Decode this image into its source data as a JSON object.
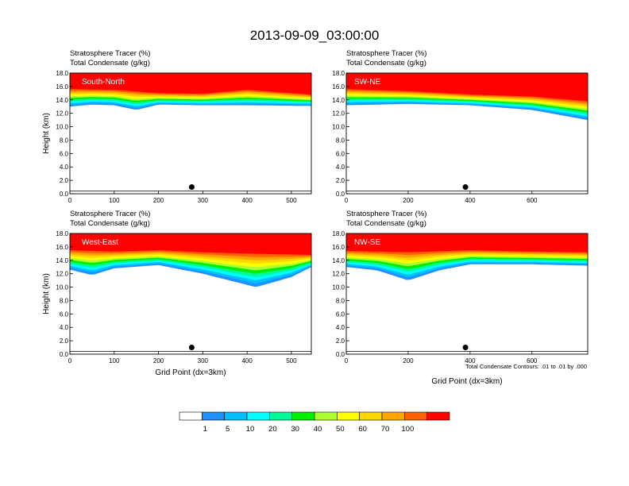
{
  "figure": {
    "title": "2013-09-09_03:00:00",
    "footnote": "Total Condensate Contours: .01 to .01 by .000",
    "marker_height_km": 1.0
  },
  "colorbar": {
    "labels": [
      "1",
      "5",
      "10",
      "20",
      "30",
      "40",
      "50",
      "60",
      "70",
      "100"
    ],
    "colors": [
      "#ffffff",
      "#1e90ff",
      "#00bfff",
      "#00ffff",
      "#00fa9a",
      "#00ee00",
      "#adff2f",
      "#ffff00",
      "#ffd700",
      "#ffa500",
      "#ff6103",
      "#ff0000"
    ]
  },
  "chart_data": [
    {
      "type": "heatmap",
      "panel_label": "South-North",
      "subtitle_1": "Stratosphere Tracer   (%)",
      "subtitle_2": "Total Condensate   (g/kg)",
      "ylabel": "Height (km)",
      "xlabel": "",
      "xlim": [
        0,
        545
      ],
      "ylim": [
        0,
        18
      ],
      "xticks": [
        0,
        100,
        200,
        300,
        400,
        500
      ],
      "yticks": [
        "0.0",
        "2.0",
        "4.0",
        "6.0",
        "8.0",
        "10.0",
        "12.0",
        "14.0",
        "16.0",
        "18.0"
      ],
      "marker_x": 275,
      "tracer_100_base_km": [
        [
          0,
          15.6
        ],
        [
          100,
          15.5
        ],
        [
          200,
          15.0
        ],
        [
          300,
          14.9
        ],
        [
          400,
          15.5
        ],
        [
          500,
          15.0
        ],
        [
          545,
          14.8
        ]
      ],
      "tracer_1_base_km": [
        [
          0,
          13.0
        ],
        [
          50,
          13.3
        ],
        [
          100,
          13.2
        ],
        [
          150,
          12.5
        ],
        [
          200,
          13.3
        ],
        [
          300,
          13.2
        ],
        [
          400,
          13.2
        ],
        [
          545,
          13.1
        ]
      ]
    },
    {
      "type": "heatmap",
      "panel_label": "SW-NE",
      "subtitle_1": "Stratosphere Tracer   (%)",
      "subtitle_2": "Total Condensate   (g/kg)",
      "ylabel": "",
      "xlabel": "",
      "xlim": [
        0,
        780
      ],
      "ylim": [
        0,
        18
      ],
      "xticks": [
        0,
        200,
        400,
        600
      ],
      "yticks": [
        "0.0",
        "2.0",
        "4.0",
        "6.0",
        "8.0",
        "10.0",
        "12.0",
        "14.0",
        "16.0",
        "18.0"
      ],
      "marker_x": 385,
      "tracer_100_base_km": [
        [
          0,
          15.6
        ],
        [
          200,
          15.3
        ],
        [
          400,
          14.8
        ],
        [
          600,
          14.5
        ],
        [
          780,
          13.8
        ]
      ],
      "tracer_1_base_km": [
        [
          0,
          13.2
        ],
        [
          200,
          13.4
        ],
        [
          400,
          13.2
        ],
        [
          600,
          12.5
        ],
        [
          780,
          11.0
        ]
      ]
    },
    {
      "type": "heatmap",
      "panel_label": "West-East",
      "subtitle_1": "Stratosphere Tracer   (%)",
      "subtitle_2": "Total Condensate   (g/kg)",
      "ylabel": "Height (km)",
      "xlabel": "Grid Point (dx=3km)",
      "xlim": [
        0,
        545
      ],
      "ylim": [
        0,
        18
      ],
      "xticks": [
        0,
        100,
        200,
        300,
        400,
        500
      ],
      "yticks": [
        "0.0",
        "2.0",
        "4.0",
        "6.0",
        "8.0",
        "10.0",
        "12.0",
        "14.0",
        "16.0",
        "18.0"
      ],
      "marker_x": 275,
      "tracer_100_base_km": [
        [
          0,
          15.5
        ],
        [
          100,
          15.3
        ],
        [
          200,
          15.5
        ],
        [
          300,
          15.2
        ],
        [
          400,
          15.0
        ],
        [
          545,
          14.8
        ]
      ],
      "tracer_1_base_km": [
        [
          0,
          12.6
        ],
        [
          50,
          11.8
        ],
        [
          100,
          12.8
        ],
        [
          200,
          13.3
        ],
        [
          300,
          12.0
        ],
        [
          420,
          10.0
        ],
        [
          500,
          11.5
        ],
        [
          545,
          13.0
        ]
      ]
    },
    {
      "type": "heatmap",
      "panel_label": "NW-SE",
      "subtitle_1": "Stratosphere Tracer   (%)",
      "subtitle_2": "Total Condensate   (g/kg)",
      "ylabel": "",
      "xlabel": "Grid Point (dx=3km)",
      "xlim": [
        0,
        780
      ],
      "ylim": [
        0,
        18
      ],
      "xticks": [
        0,
        200,
        400,
        600
      ],
      "yticks": [
        "0.0",
        "2.0",
        "4.0",
        "6.0",
        "8.0",
        "10.0",
        "12.0",
        "14.0",
        "16.0",
        "18.0"
      ],
      "marker_x": 385,
      "tracer_100_base_km": [
        [
          0,
          15.4
        ],
        [
          200,
          15.2
        ],
        [
          400,
          15.5
        ],
        [
          600,
          15.3
        ],
        [
          780,
          15.2
        ]
      ],
      "tracer_1_base_km": [
        [
          0,
          13.0
        ],
        [
          100,
          12.5
        ],
        [
          200,
          11.0
        ],
        [
          300,
          12.5
        ],
        [
          400,
          13.4
        ],
        [
          600,
          13.4
        ],
        [
          780,
          13.2
        ]
      ]
    }
  ]
}
